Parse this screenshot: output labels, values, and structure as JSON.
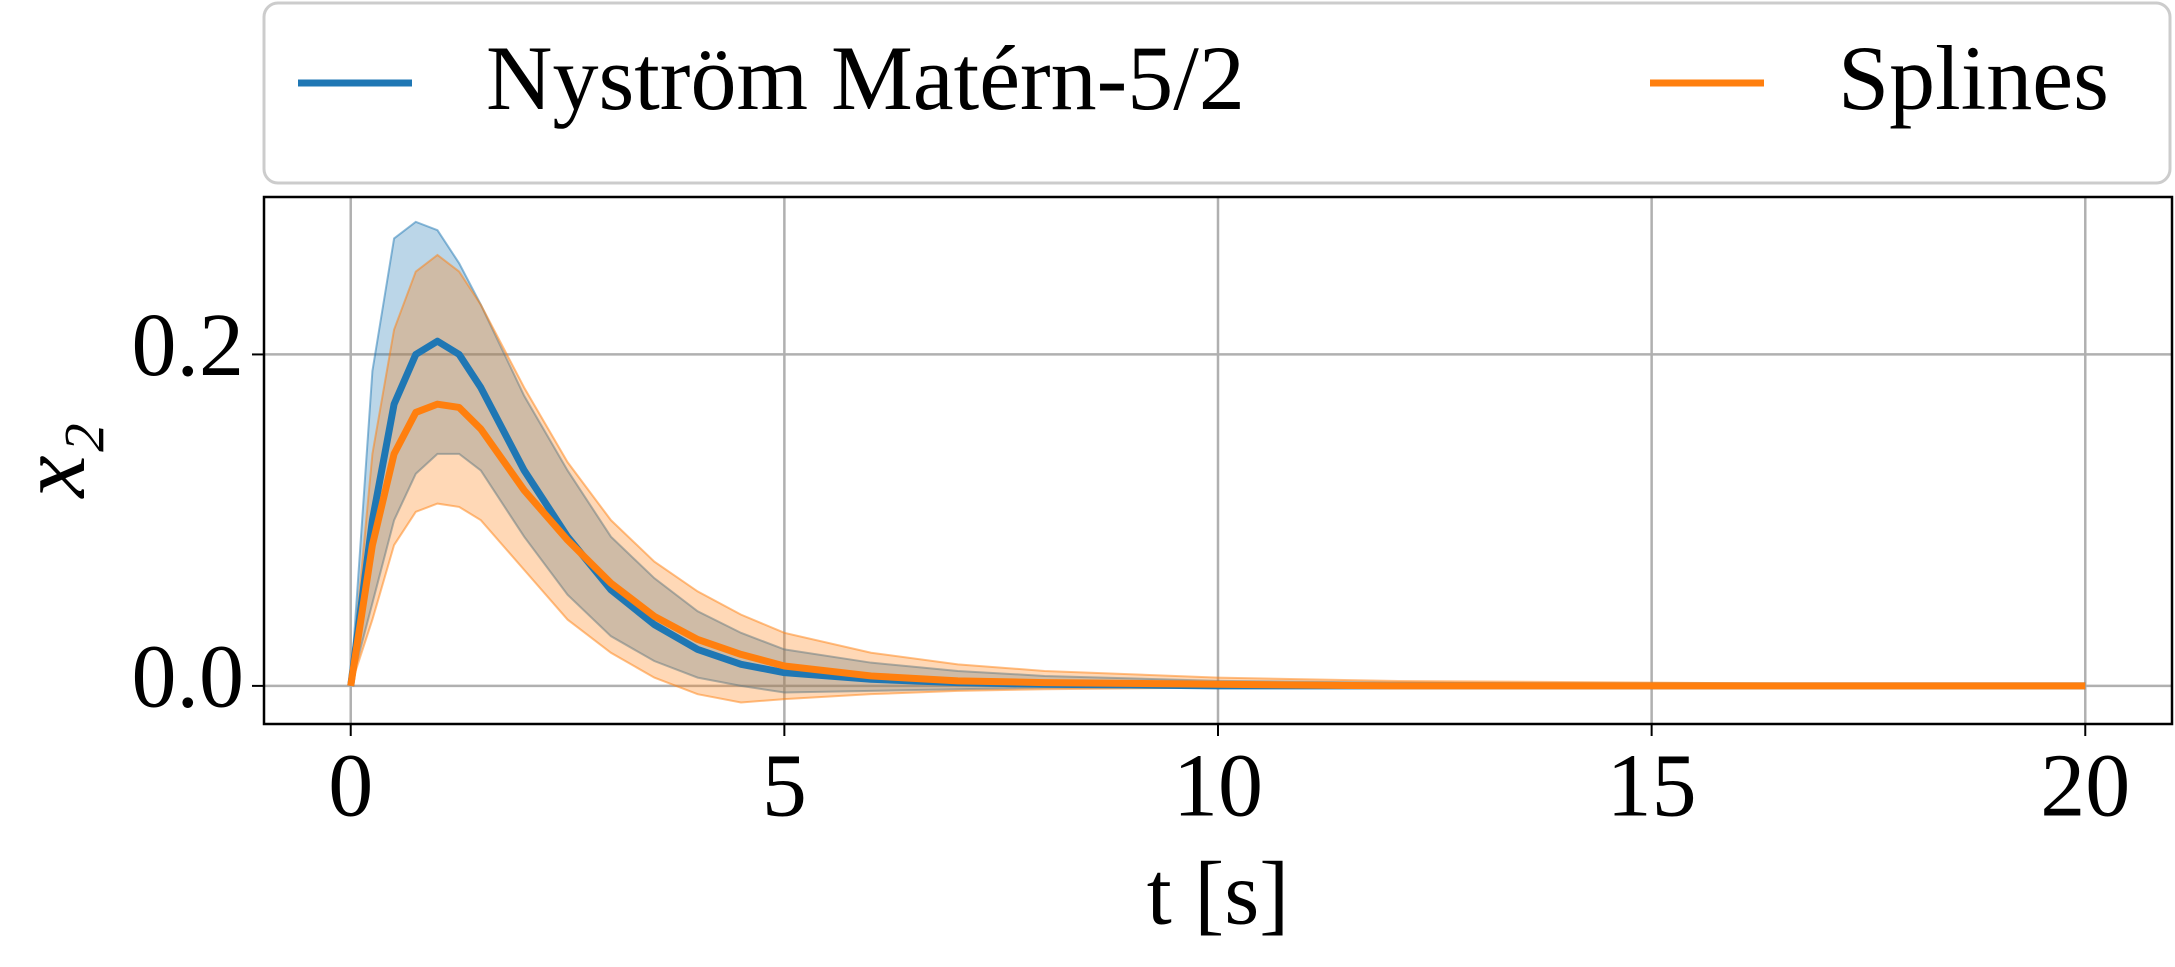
{
  "chart_data": {
    "type": "line",
    "xlabel": "t [s]",
    "ylabel": "x₂",
    "x": [
      0,
      0.25,
      0.5,
      0.75,
      1,
      1.25,
      1.5,
      2,
      2.5,
      3,
      3.5,
      4,
      4.5,
      5,
      6,
      7,
      8,
      10,
      12,
      15,
      20
    ],
    "series": [
      {
        "name": "Nyström Matérn-5/2",
        "color": "#1f77b4",
        "values": [
          0,
          0.1,
          0.17,
          0.2,
          0.208,
          0.2,
          0.18,
          0.13,
          0.09,
          0.058,
          0.037,
          0.022,
          0.013,
          0.008,
          0.004,
          0.002,
          0.001,
          0,
          0,
          0,
          0
        ],
        "upper": [
          0,
          0.19,
          0.27,
          0.28,
          0.275,
          0.255,
          0.23,
          0.175,
          0.13,
          0.09,
          0.065,
          0.045,
          0.032,
          0.022,
          0.014,
          0.009,
          0.006,
          0.003,
          0.002,
          0.001,
          0
        ],
        "lower": [
          0,
          0.05,
          0.1,
          0.128,
          0.14,
          0.14,
          0.13,
          0.09,
          0.055,
          0.03,
          0.015,
          0.005,
          0,
          -0.004,
          -0.003,
          -0.002,
          -0.001,
          -0.001,
          0,
          0,
          0
        ]
      },
      {
        "name": "Splines",
        "color": "#ff7f0e",
        "values": [
          0,
          0.085,
          0.14,
          0.165,
          0.17,
          0.168,
          0.155,
          0.118,
          0.088,
          0.062,
          0.042,
          0.028,
          0.019,
          0.012,
          0.006,
          0.003,
          0.002,
          0.001,
          0,
          0,
          0
        ],
        "upper": [
          0,
          0.14,
          0.215,
          0.25,
          0.26,
          0.25,
          0.23,
          0.18,
          0.135,
          0.1,
          0.075,
          0.057,
          0.043,
          0.032,
          0.02,
          0.013,
          0.009,
          0.005,
          0.003,
          0.002,
          0
        ],
        "lower": [
          0,
          0.04,
          0.085,
          0.105,
          0.11,
          0.108,
          0.1,
          0.07,
          0.04,
          0.02,
          0.005,
          -0.005,
          -0.01,
          -0.008,
          -0.005,
          -0.003,
          -0.002,
          -0.001,
          0,
          0,
          0
        ]
      }
    ],
    "xlim": [
      -1,
      21
    ],
    "xticks": [
      0,
      5,
      10,
      15,
      20
    ],
    "ylim": [
      -0.023,
      0.295
    ],
    "yticks": [
      {
        "value": 0,
        "label": "0.0"
      },
      0.2
    ],
    "grid": true,
    "band_opacity": 0.3,
    "legend": "top"
  }
}
